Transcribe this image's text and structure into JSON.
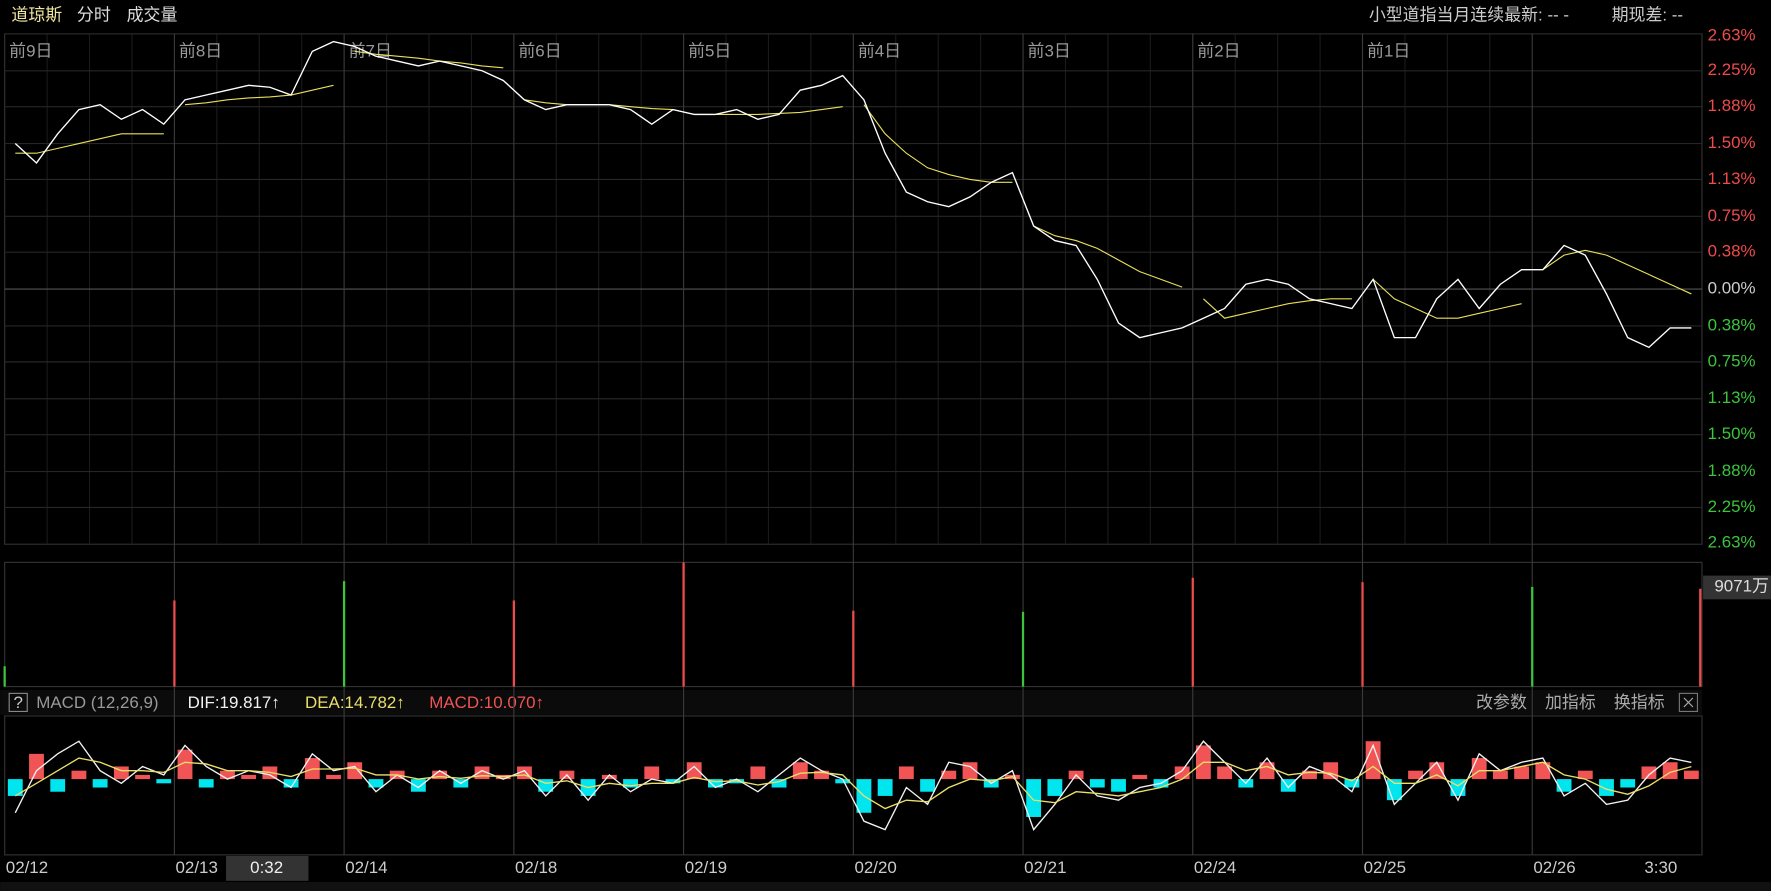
{
  "header": {
    "title": "道琼斯",
    "tabs": [
      "分时",
      "成交量"
    ],
    "contract": "小型道指当月连续最新: -- -",
    "basis": "期现差: --"
  },
  "chart_data": [
    {
      "type": "line",
      "day_labels": [
        "前9日",
        "前8日",
        "前7日",
        "前6日",
        "前5日",
        "前4日",
        "前3日",
        "前2日",
        "前1日"
      ],
      "categories": [
        null,
        null,
        null,
        null,
        null,
        null,
        null,
        null,
        null,
        null,
        null,
        null,
        null,
        null,
        null,
        null,
        null,
        null,
        null,
        null,
        null,
        null,
        null,
        null,
        null,
        null,
        null,
        null,
        null,
        null,
        null,
        null,
        null,
        null,
        null,
        null,
        null,
        null,
        null,
        null,
        null,
        null,
        null,
        null,
        null,
        null,
        null,
        null,
        null,
        null,
        null,
        null,
        null,
        null,
        null,
        null,
        null,
        null,
        null,
        null,
        null,
        null,
        null,
        null,
        null,
        null,
        null,
        null,
        null,
        null,
        null,
        null,
        null,
        null,
        null,
        null,
        null,
        null,
        null,
        null
      ],
      "ylim": [
        -2.63,
        2.63
      ],
      "yticks": [
        {
          "value": 2.63,
          "label": "2.63%"
        },
        {
          "value": 2.25,
          "label": "2.25%"
        },
        {
          "value": 1.88,
          "label": "1.88%"
        },
        {
          "value": 1.5,
          "label": "1.50%"
        },
        {
          "value": 1.13,
          "label": "1.13%"
        },
        {
          "value": 0.75,
          "label": "0.75%"
        },
        {
          "value": 0.38,
          "label": "0.38%"
        },
        {
          "value": 0,
          "label": "0.00%"
        },
        {
          "value": -0.38,
          "label": "0.38%"
        },
        {
          "value": -0.75,
          "label": "0.75%"
        },
        {
          "value": -1.13,
          "label": "1.13%"
        },
        {
          "value": -1.5,
          "label": "1.50%"
        },
        {
          "value": -1.88,
          "label": "1.88%"
        },
        {
          "value": -2.25,
          "label": "2.25%"
        },
        {
          "value": -2.63,
          "label": "2.63%"
        }
      ],
      "grid": true,
      "up_color": "#ee4b4b",
      "down_color": "#3cc43c",
      "series": [
        {
          "color": "#ffffff",
          "values": [
            1.5,
            1.3,
            1.6,
            1.85,
            1.9,
            1.75,
            1.85,
            1.7,
            1.95,
            2.0,
            2.05,
            2.1,
            2.08,
            2.0,
            2.45,
            2.55,
            2.5,
            2.4,
            2.35,
            2.3,
            2.35,
            2.3,
            2.25,
            2.15,
            1.95,
            1.85,
            1.9,
            1.9,
            1.9,
            1.85,
            1.7,
            1.85,
            1.8,
            1.8,
            1.85,
            1.75,
            1.8,
            2.05,
            2.1,
            2.2,
            1.95,
            1.4,
            1.0,
            0.9,
            0.85,
            0.95,
            1.1,
            1.2,
            0.65,
            0.5,
            0.45,
            0.1,
            -0.35,
            -0.5,
            -0.45,
            -0.4,
            -0.3,
            -0.2,
            0.05,
            0.1,
            0.05,
            -0.1,
            -0.15,
            -0.2,
            0.1,
            -0.5,
            -0.5,
            -0.1,
            0.1,
            -0.2,
            0.05,
            0.2,
            0.2,
            0.45,
            0.35,
            -0.05,
            -0.5,
            -0.6,
            -0.4,
            -0.4
          ]
        },
        {
          "color": "#e8e05a",
          "values": [
            1.4,
            1.4,
            1.45,
            1.5,
            1.55,
            1.6,
            1.6,
            1.6,
            1.9,
            1.92,
            1.95,
            1.97,
            1.98,
            2.0,
            2.05,
            2.1,
            2.45,
            2.42,
            2.4,
            2.38,
            2.35,
            2.33,
            2.3,
            2.28,
            1.95,
            1.92,
            1.9,
            1.9,
            1.9,
            1.88,
            1.86,
            1.85,
            1.8,
            1.8,
            1.8,
            1.8,
            1.81,
            1.82,
            1.85,
            1.88,
            1.9,
            1.6,
            1.4,
            1.25,
            1.18,
            1.13,
            1.1,
            1.1,
            0.65,
            0.55,
            0.5,
            0.42,
            0.3,
            0.18,
            0.1,
            0.02,
            -0.1,
            -0.3,
            -0.25,
            -0.2,
            -0.15,
            -0.12,
            -0.1,
            -0.1,
            0.1,
            -0.1,
            -0.2,
            -0.3,
            -0.3,
            -0.25,
            -0.2,
            -0.15,
            0.2,
            0.35,
            0.4,
            0.35,
            0.25,
            0.15,
            0.05,
            -0.05
          ]
        }
      ]
    },
    {
      "type": "bar",
      "values": [
        1850,
        7834,
        9590,
        7834,
        11300,
        6900,
        6800,
        9900,
        9500,
        9071,
        8900
      ],
      "colors": [
        "#3cc43c",
        "#ee4b4b",
        "#3cc43c",
        "#ee4b4b",
        "#ee4b4b",
        "#ee4b4b",
        "#3cc43c",
        "#ee4b4b",
        "#ee4b4b",
        "#3cc43c",
        "#ee4b4b"
      ],
      "ylim": [
        0,
        11300
      ],
      "yticks": [
        {
          "value": 9071,
          "label": "9071万"
        }
      ]
    },
    {
      "type": "macd",
      "indicator": "MACD (12,26,9)",
      "readouts": [
        "DIF:19.817↑",
        "DEA:14.782↑",
        "MACD:10.070↑"
      ],
      "buttons": [
        "改参数",
        "加指标",
        "换指标"
      ],
      "ylim": [
        -90,
        75
      ],
      "up_color": "#f05454",
      "down_color": "#00e5ee",
      "values": [
        -20,
        30,
        -15,
        10,
        -10,
        15,
        5,
        -5,
        35,
        -10,
        10,
        5,
        15,
        -10,
        25,
        5,
        20,
        -10,
        10,
        -15,
        10,
        -10,
        15,
        5,
        15,
        -15,
        10,
        -20,
        5,
        -10,
        15,
        -5,
        20,
        -10,
        -5,
        15,
        -10,
        20,
        10,
        -5,
        -40,
        -20,
        15,
        -15,
        10,
        20,
        -10,
        5,
        -45,
        -20,
        10,
        -10,
        -15,
        5,
        -10,
        15,
        40,
        15,
        -10,
        20,
        -15,
        10,
        20,
        -10,
        45,
        -25,
        10,
        20,
        -20,
        25,
        10,
        15,
        20,
        -15,
        10,
        -20,
        -10,
        15,
        20,
        10.07
      ],
      "series": [
        {
          "color": "#f2f2f2",
          "values": [
            -40,
            10,
            30,
            45,
            10,
            -5,
            15,
            5,
            40,
            15,
            0,
            10,
            5,
            -10,
            30,
            10,
            15,
            -15,
            5,
            -10,
            10,
            -5,
            10,
            0,
            10,
            -20,
            5,
            -25,
            5,
            -15,
            0,
            -5,
            15,
            -10,
            0,
            -15,
            5,
            25,
            10,
            0,
            -50,
            -60,
            -10,
            -30,
            20,
            15,
            -5,
            10,
            -60,
            -30,
            5,
            -20,
            -25,
            -10,
            -5,
            10,
            45,
            20,
            -5,
            25,
            -10,
            15,
            5,
            -15,
            40,
            -30,
            -5,
            20,
            -25,
            30,
            10,
            20,
            25,
            -20,
            -5,
            -30,
            -25,
            5,
            25,
            19.817
          ]
        },
        {
          "color": "#eadf6a",
          "values": [
            -20,
            -5,
            10,
            25,
            20,
            10,
            10,
            8,
            20,
            18,
            10,
            10,
            8,
            3,
            12,
            12,
            13,
            5,
            5,
            0,
            3,
            1,
            4,
            3,
            5,
            -5,
            -2,
            -10,
            -5,
            -8,
            -5,
            -5,
            2,
            -3,
            -2,
            -7,
            -3,
            7,
            8,
            5,
            -20,
            -35,
            -25,
            -27,
            -10,
            0,
            -2,
            3,
            -25,
            -28,
            -15,
            -17,
            -20,
            -15,
            -10,
            0,
            20,
            20,
            10,
            15,
            5,
            8,
            7,
            -2,
            15,
            -5,
            -5,
            5,
            -8,
            10,
            10,
            15,
            20,
            5,
            0,
            -12,
            -18,
            -8,
            8,
            14.782
          ]
        }
      ]
    }
  ],
  "x_axis": {
    "dates": [
      "02/12",
      "02/13",
      "02/14",
      "02/18",
      "02/19",
      "02/20",
      "02/21",
      "02/24",
      "02/25",
      "02/26"
    ],
    "cursor_label": "0:32",
    "end_label": "3:30"
  }
}
